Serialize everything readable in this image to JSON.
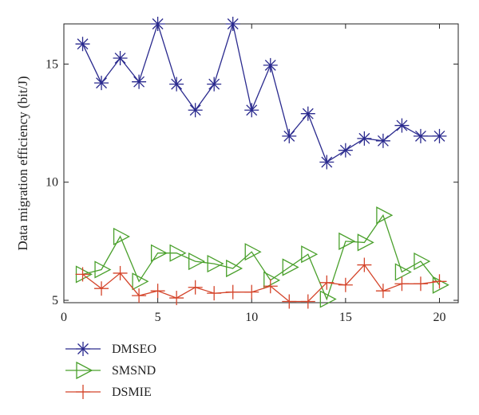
{
  "chart_data": {
    "type": "line",
    "ylabel": "Data migration efficiency (bit/J)",
    "xlabel": "",
    "xlim": [
      0,
      21
    ],
    "ylim": [
      4.9,
      16.7
    ],
    "xticks": [
      0,
      5,
      10,
      15,
      20
    ],
    "yticks": [
      5,
      10,
      15
    ],
    "grid": false,
    "legend_position": "bottom-left",
    "x": [
      1,
      2,
      3,
      4,
      5,
      6,
      7,
      8,
      9,
      10,
      11,
      12,
      13,
      14,
      15,
      16,
      17,
      18,
      19,
      20
    ],
    "series": [
      {
        "name": "DMSEO",
        "color": "#2a2a8e",
        "marker": "asterisk",
        "values": [
          15.85,
          14.2,
          15.25,
          14.25,
          16.7,
          14.15,
          13.05,
          14.15,
          16.7,
          13.05,
          14.95,
          11.95,
          12.9,
          10.85,
          11.35,
          11.85,
          11.75,
          12.4,
          11.95,
          11.95
        ]
      },
      {
        "name": "SMSND",
        "color": "#4aa02c",
        "marker": "triangle-right",
        "values": [
          6.1,
          6.3,
          7.7,
          5.8,
          7.0,
          7.0,
          6.65,
          6.55,
          6.35,
          7.05,
          5.85,
          6.4,
          6.95,
          5.05,
          7.5,
          7.45,
          8.6,
          6.2,
          6.65,
          5.65
        ]
      },
      {
        "name": "DSMIE",
        "color": "#d4442a",
        "marker": "plus",
        "values": [
          6.1,
          5.5,
          6.15,
          5.2,
          5.4,
          5.1,
          5.55,
          5.3,
          5.35,
          5.35,
          5.6,
          4.95,
          4.95,
          5.75,
          5.65,
          6.5,
          5.4,
          5.7,
          5.7,
          5.8
        ]
      }
    ]
  }
}
